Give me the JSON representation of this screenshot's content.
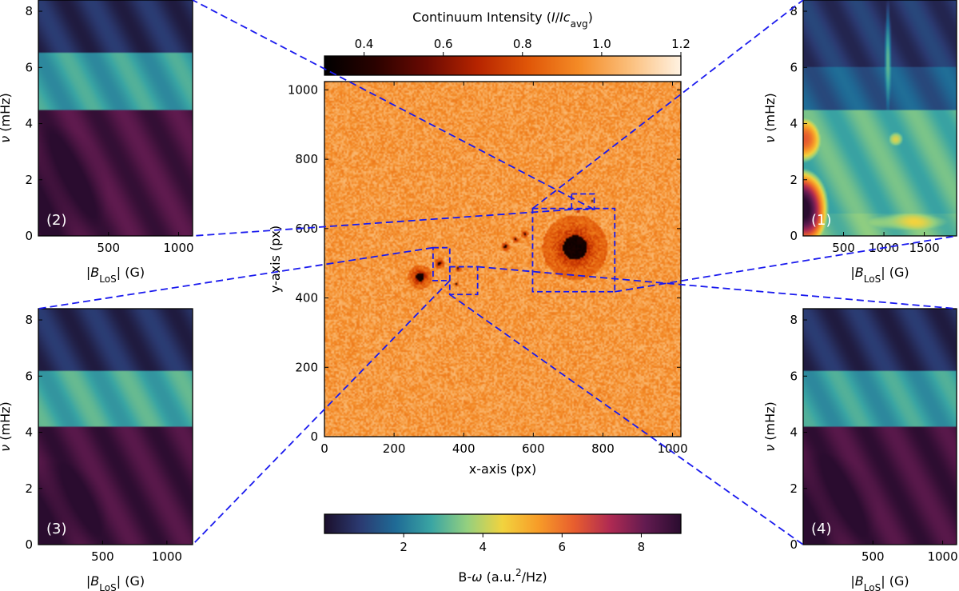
{
  "colors": {
    "connector": "#1a1aee",
    "frame": "#000000",
    "hot": [
      "#000000",
      "#2a0200",
      "#6a0a02",
      "#b62400",
      "#e05608",
      "#f48b26",
      "#fbbf7c",
      "#fff2e2"
    ],
    "bomega": [
      "#1b0f2c",
      "#2b3a71",
      "#1f6b96",
      "#3aa5a3",
      "#94d07f",
      "#f2d33e",
      "#f79c28",
      "#e85e2e",
      "#b02a52",
      "#621b50",
      "#2a0c2f"
    ]
  },
  "chart_data": [
    {
      "id": "intensity-map",
      "type": "heatmap",
      "title": "",
      "xlabel": "x-axis (px)",
      "ylabel": "y-axis (px)",
      "xlim": [
        0,
        1024
      ],
      "ylim": [
        0,
        1024
      ],
      "xticks": [
        0,
        200,
        400,
        600,
        800,
        1000
      ],
      "yticks": [
        0,
        200,
        400,
        600,
        800,
        1000
      ],
      "features": [
        {
          "name": "large sunspot",
          "x": 720,
          "y": 545,
          "radius": 75,
          "umbra_radius": 35
        },
        {
          "name": "small sunspot",
          "x": 275,
          "y": 460,
          "radius": 28,
          "umbra_radius": 12
        },
        {
          "name": "pore",
          "x": 330,
          "y": 500,
          "radius": 12,
          "umbra_radius": 5
        },
        {
          "name": "pore",
          "x": 385,
          "y": 485,
          "radius": 7,
          "umbra_radius": 3
        },
        {
          "name": "pore",
          "x": 520,
          "y": 548,
          "radius": 10,
          "umbra_radius": 4
        },
        {
          "name": "pore",
          "x": 550,
          "y": 568,
          "radius": 8,
          "umbra_radius": 3
        },
        {
          "name": "pore",
          "x": 575,
          "y": 585,
          "radius": 9,
          "umbra_radius": 3
        },
        {
          "name": "pore",
          "x": 770,
          "y": 680,
          "radius": 4,
          "umbra_radius": 2
        },
        {
          "name": "pore",
          "x": 730,
          "y": 650,
          "radius": 5,
          "umbra_radius": 2
        },
        {
          "name": "pore",
          "x": 380,
          "y": 440,
          "radius": 5,
          "umbra_radius": 2
        }
      ],
      "regions": [
        {
          "label": "(1)",
          "x": [
            598,
            834
          ],
          "y": [
            418,
            658
          ]
        },
        {
          "label": "(2)",
          "x": [
            710,
            775
          ],
          "y": [
            655,
            700
          ]
        },
        {
          "label": "(3)",
          "x": [
            312,
            360
          ],
          "y": [
            450,
            545
          ]
        },
        {
          "label": "(4)",
          "x": [
            360,
            440
          ],
          "y": [
            410,
            490
          ]
        }
      ]
    },
    {
      "id": "intensity-colorbar",
      "type": "colorbar",
      "label_parts": [
        "Continuum Intensity (",
        "I",
        "/",
        "Ic",
        "avg",
        ")"
      ],
      "range": [
        0.3,
        1.2
      ],
      "ticks": [
        0.4,
        0.6,
        0.8,
        1.0,
        1.2
      ],
      "tick_labels": [
        "0.4",
        "0.6",
        "0.8",
        "1.0",
        "1.2"
      ]
    },
    {
      "id": "bomega-colorbar",
      "type": "colorbar",
      "label_parts": [
        "B-",
        "ω",
        " (a.u.",
        "2",
        "/Hz)"
      ],
      "range": [
        0,
        9
      ],
      "ticks": [
        2,
        4,
        6,
        8
      ],
      "tick_labels": [
        "2",
        "4",
        "6",
        "8"
      ]
    },
    {
      "id": "panel-1",
      "type": "heatmap",
      "label": "(1)",
      "xlabel_parts": [
        "|",
        "B",
        "LoS",
        "| (G)"
      ],
      "ylabel_parts": [
        "ν",
        " (mHz)"
      ],
      "xlim": [
        0,
        1900
      ],
      "ylim": [
        0,
        8.4
      ],
      "xticks": [
        500,
        1000,
        1500
      ],
      "yticks": [
        0,
        2,
        4,
        6,
        8
      ],
      "bands": [
        {
          "y": [
            0,
            0.8
          ],
          "x": [
            0,
            1900
          ],
          "value": 3.2
        },
        {
          "y": [
            0.8,
            4.5
          ],
          "x": [
            0,
            1900
          ],
          "value": 3.0
        },
        {
          "y": [
            4.5,
            6.0
          ],
          "x": [
            0,
            1900
          ],
          "value": 1.5
        },
        {
          "y": [
            6.0,
            8.4
          ],
          "x": [
            0,
            1900
          ],
          "value": 0.8
        }
      ],
      "blobs": [
        {
          "x": 0,
          "y": 1.0,
          "rx": 320,
          "ry": 1.4,
          "value": 9.0
        },
        {
          "x": 0,
          "y": 3.4,
          "rx": 220,
          "ry": 0.8,
          "value": 6.5
        },
        {
          "x": 1150,
          "y": 3.45,
          "rx": 90,
          "ry": 0.25,
          "value": 4.6
        },
        {
          "x": 1050,
          "y": 6.3,
          "rx": 40,
          "ry": 2.2,
          "value": 2.8
        },
        {
          "x": 1300,
          "y": 0.5,
          "rx": 500,
          "ry": 0.3,
          "value": 4.2
        }
      ]
    },
    {
      "id": "panel-2",
      "type": "heatmap",
      "label": "(2)",
      "xlabel_parts": [
        "|",
        "B",
        "LoS",
        "| (G)"
      ],
      "ylabel_parts": [
        "ν",
        " (mHz)"
      ],
      "xlim": [
        0,
        1100
      ],
      "ylim": [
        0,
        8.4
      ],
      "xticks": [
        500,
        1000
      ],
      "yticks": [
        0,
        2,
        4,
        6,
        8
      ],
      "bands": [
        {
          "y": [
            0,
            4.5
          ],
          "x": [
            0,
            1100
          ],
          "value": 8.5
        },
        {
          "y": [
            4.5,
            6.5
          ],
          "x": [
            0,
            1100
          ],
          "value": 2.6
        },
        {
          "y": [
            6.5,
            8.4
          ],
          "x": [
            0,
            1100
          ],
          "value": 0.6
        }
      ],
      "blobs": [
        {
          "x": 80,
          "y": 1.6,
          "rx": 420,
          "ry": 2.4,
          "value": 9.0
        },
        {
          "x": 750,
          "y": 1.8,
          "rx": 280,
          "ry": 1.5,
          "value": 5.0
        },
        {
          "x": 500,
          "y": 3.5,
          "rx": 450,
          "ry": 0.5,
          "value": 6.2
        }
      ]
    },
    {
      "id": "panel-3",
      "type": "heatmap",
      "label": "(3)",
      "xlabel_parts": [
        "|",
        "B",
        "LoS",
        "| (G)"
      ],
      "ylabel_parts": [
        "ν",
        " (mHz)"
      ],
      "xlim": [
        0,
        1200
      ],
      "ylim": [
        0,
        8.4
      ],
      "xticks": [
        500,
        1000
      ],
      "yticks": [
        0,
        2,
        4,
        6,
        8
      ],
      "bands": [
        {
          "y": [
            0,
            4.2
          ],
          "x": [
            0,
            1200
          ],
          "value": 8.6
        },
        {
          "y": [
            4.2,
            6.2
          ],
          "x": [
            0,
            1200
          ],
          "value": 2.8
        },
        {
          "y": [
            6.2,
            8.4
          ],
          "x": [
            0,
            1200
          ],
          "value": 0.6
        }
      ],
      "blobs": [
        {
          "x": 100,
          "y": 1.2,
          "rx": 450,
          "ry": 1.8,
          "value": 9.0
        },
        {
          "x": 700,
          "y": 2.6,
          "rx": 420,
          "ry": 1.0,
          "value": 5.5
        },
        {
          "x": 1050,
          "y": 1.8,
          "rx": 200,
          "ry": 1.2,
          "value": 4.0
        }
      ]
    },
    {
      "id": "panel-4",
      "type": "heatmap",
      "label": "(4)",
      "xlabel_parts": [
        "|",
        "B",
        "LoS",
        "| (G)"
      ],
      "ylabel_parts": [
        "ν",
        " (mHz)"
      ],
      "xlim": [
        0,
        1100
      ],
      "ylim": [
        0,
        8.4
      ],
      "xticks": [
        500,
        1000
      ],
      "yticks": [
        0,
        2,
        4,
        6,
        8
      ],
      "bands": [
        {
          "y": [
            0,
            4.2
          ],
          "x": [
            0,
            1100
          ],
          "value": 8.6
        },
        {
          "y": [
            4.2,
            6.2
          ],
          "x": [
            0,
            1100
          ],
          "value": 2.6
        },
        {
          "y": [
            6.2,
            8.4
          ],
          "x": [
            0,
            1100
          ],
          "value": 0.6
        }
      ],
      "blobs": [
        {
          "x": 100,
          "y": 1.4,
          "rx": 450,
          "ry": 1.9,
          "value": 9.0
        },
        {
          "x": 800,
          "y": 1.9,
          "rx": 300,
          "ry": 1.0,
          "value": 5.0
        },
        {
          "x": 1000,
          "y": 3.2,
          "rx": 180,
          "ry": 0.8,
          "value": 6.5
        }
      ]
    }
  ]
}
